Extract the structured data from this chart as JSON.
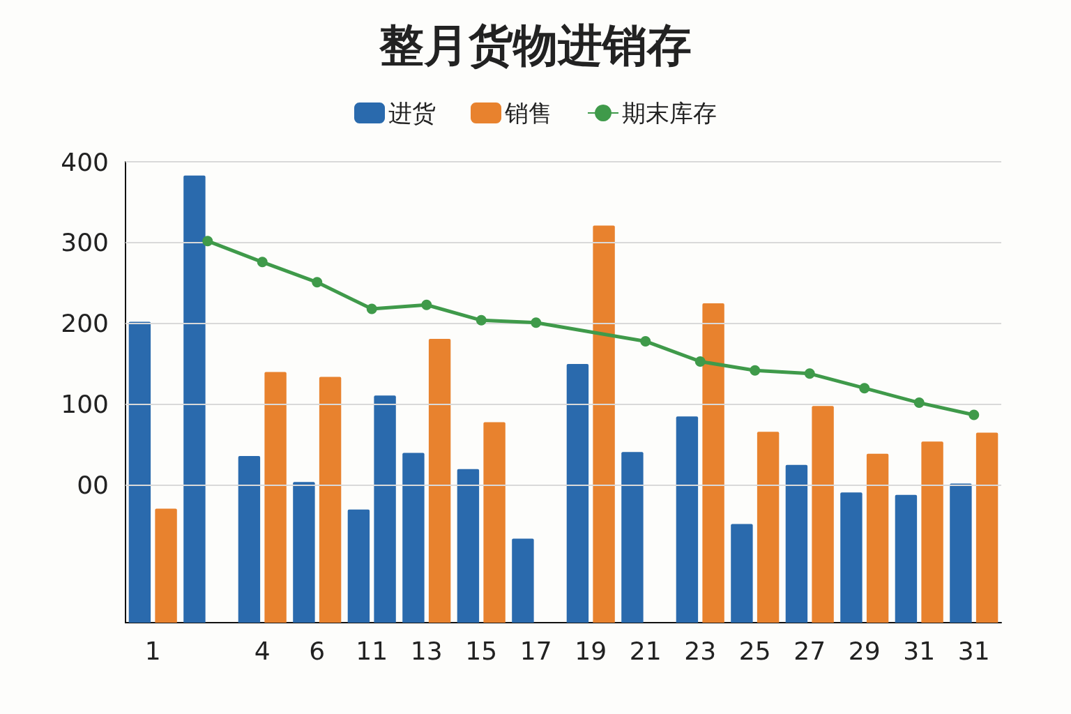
{
  "chart_data": {
    "type": "bar",
    "title": "整月货物进销存",
    "categories": [
      "1",
      null,
      "4",
      "6",
      "11",
      "13",
      "15",
      "17",
      "19",
      "21",
      "23",
      "25",
      "27",
      "29",
      "31",
      "31"
    ],
    "series": [
      {
        "name": "进货",
        "color": "#2a6aad",
        "base": [
          -170,
          -170,
          -170,
          -170,
          -170,
          -170,
          -170,
          -170,
          -170,
          -170,
          -170,
          -170,
          -170,
          -170,
          -170,
          -170
        ],
        "values": [
          372,
          553,
          206,
          174,
          140,
          210,
          190,
          104,
          320,
          211,
          255,
          122,
          195,
          161,
          158,
          172
        ]
      },
      {
        "name": "销售",
        "color": "#e8822e",
        "colors": [
          "#e8822e",
          "#e8822e",
          "#e8822e",
          "#e8822e",
          "#2a6aad",
          "#e8822e",
          "#e8822e",
          "#e8822e",
          "#e8822e",
          "#e8822e",
          "#e8822e",
          "#e8822e",
          "#e8822e",
          "#e8822e",
          "#e8822e",
          "#e8822e"
        ],
        "base": [
          -170,
          null,
          -170,
          -170,
          -170,
          -170,
          -170,
          null,
          -170,
          null,
          -170,
          -170,
          -170,
          -170,
          -170,
          -170
        ],
        "values": [
          141,
          null,
          310,
          304,
          281,
          351,
          248,
          null,
          491,
          null,
          395,
          236,
          268,
          209,
          224,
          235
        ]
      },
      {
        "name": "期末库存",
        "type": "line",
        "color": "#3f9a4a",
        "marker": "circle",
        "values": [
          null,
          302,
          276,
          251,
          218,
          223,
          204,
          201,
          null,
          178,
          153,
          142,
          138,
          120,
          102,
          87
        ]
      }
    ],
    "ylim": [
      -170,
      400
    ],
    "yticks": [
      {
        "value": 0,
        "label": "00"
      },
      100,
      200,
      300,
      400
    ],
    "grid": "y",
    "legend": "top"
  }
}
